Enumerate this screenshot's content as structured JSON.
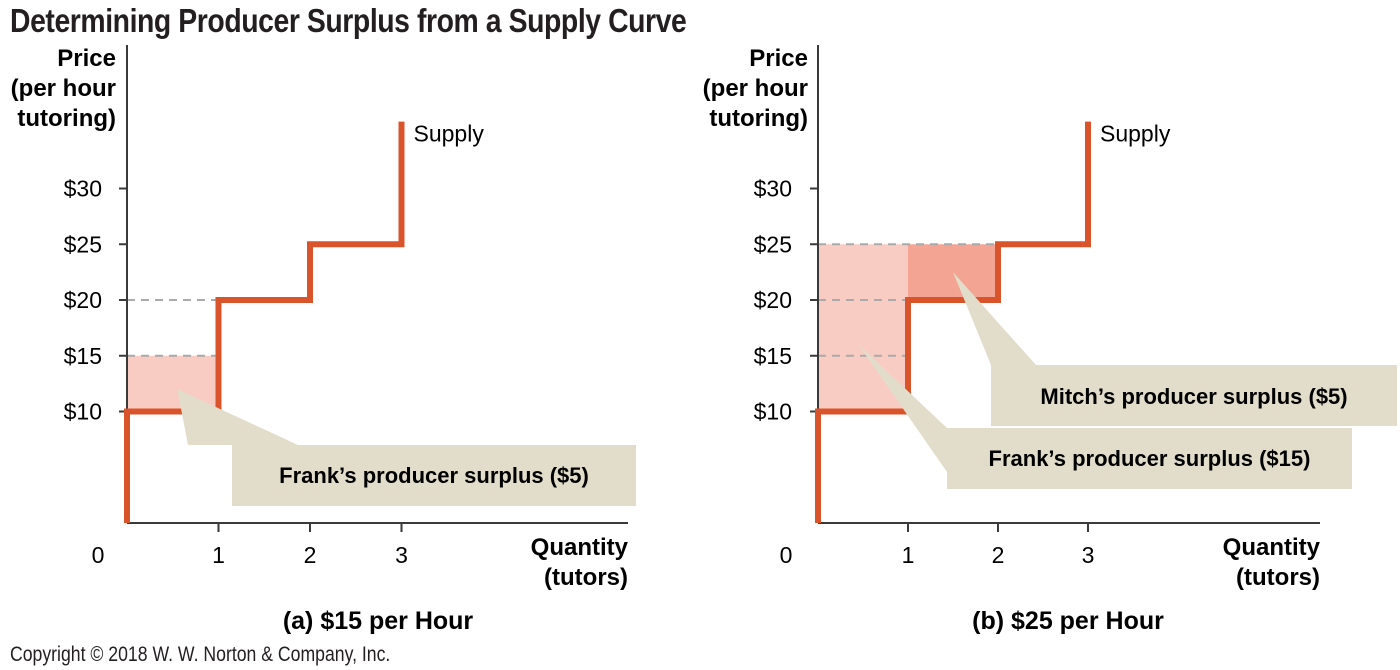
{
  "title": "Determining Producer Surplus from a Supply Curve",
  "copyright": "Copyright © 2018 W. W. Norton & Company, Inc.",
  "colors": {
    "supply": "#d9532b",
    "surplus_frank": "#f9ccc3",
    "surplus_mitch": "#f3a493",
    "callout": "#e2ddca",
    "axis": "#3a3a3a",
    "dash": "#aaaaaa"
  },
  "chart_data": [
    {
      "type": "step",
      "panel_title": "(a) $15 per Hour",
      "ylabel": [
        "Price",
        "(per hour",
        "tutoring)"
      ],
      "xlabel": [
        "Quantity",
        "(tutors)"
      ],
      "origin_label": "0",
      "price_line": 15,
      "x_ticks": [
        1,
        2,
        3
      ],
      "x_tick_labels": [
        "1",
        "2",
        "3"
      ],
      "y_ticks": [
        10,
        15,
        20,
        25,
        30
      ],
      "y_tick_labels": [
        "$10",
        "$15",
        "$20",
        "$25",
        "$30"
      ],
      "xlim": [
        0,
        4.4
      ],
      "ylim": [
        0,
        36
      ],
      "dashed_levels": [
        15,
        20
      ],
      "supply_label": "Supply",
      "supply_steps": [
        {
          "x0": 0,
          "x1": 1,
          "price": 10
        },
        {
          "x0": 1,
          "x1": 2,
          "price": 20
        },
        {
          "x0": 2,
          "x1": 3,
          "price": 25
        },
        {
          "x0": 3,
          "x1": 3,
          "price": 36
        }
      ],
      "surplus_areas": [
        {
          "name": "Frank",
          "x0": 0,
          "x1": 1,
          "y0": 10,
          "y1": 15,
          "value": 5,
          "color_key": "surplus_frank"
        }
      ],
      "callouts": [
        {
          "text": "Frank’s producer surplus ($5)",
          "points_to": {
            "x": 0.55,
            "y": 12
          }
        }
      ]
    },
    {
      "type": "step",
      "panel_title": "(b) $25 per Hour",
      "ylabel": [
        "Price",
        "(per hour",
        "tutoring)"
      ],
      "xlabel": [
        "Quantity",
        "(tutors)"
      ],
      "origin_label": "0",
      "price_line": 25,
      "x_ticks": [
        1,
        2,
        3
      ],
      "x_tick_labels": [
        "1",
        "2",
        "3"
      ],
      "y_ticks": [
        10,
        15,
        20,
        25,
        30
      ],
      "y_tick_labels": [
        "$10",
        "$15",
        "$20",
        "$25",
        "$30"
      ],
      "xlim": [
        0,
        4.4
      ],
      "ylim": [
        0,
        36
      ],
      "dashed_levels": [
        15,
        20,
        25
      ],
      "supply_label": "Supply",
      "supply_steps": [
        {
          "x0": 0,
          "x1": 1,
          "price": 10
        },
        {
          "x0": 1,
          "x1": 2,
          "price": 20
        },
        {
          "x0": 2,
          "x1": 3,
          "price": 25
        },
        {
          "x0": 3,
          "x1": 3,
          "price": 36
        }
      ],
      "surplus_areas": [
        {
          "name": "Frank",
          "x0": 0,
          "x1": 1,
          "y0": 10,
          "y1": 25,
          "value": 15,
          "color_key": "surplus_frank"
        },
        {
          "name": "Mitch",
          "x0": 1,
          "x1": 2,
          "y0": 20,
          "y1": 25,
          "value": 5,
          "color_key": "surplus_mitch"
        }
      ],
      "callouts": [
        {
          "text": "Mitch’s producer surplus ($5)",
          "points_to": {
            "x": 1.5,
            "y": 22.5
          }
        },
        {
          "text": "Frank’s producer surplus ($15)",
          "points_to": {
            "x": 0.45,
            "y": 16
          }
        }
      ]
    }
  ]
}
